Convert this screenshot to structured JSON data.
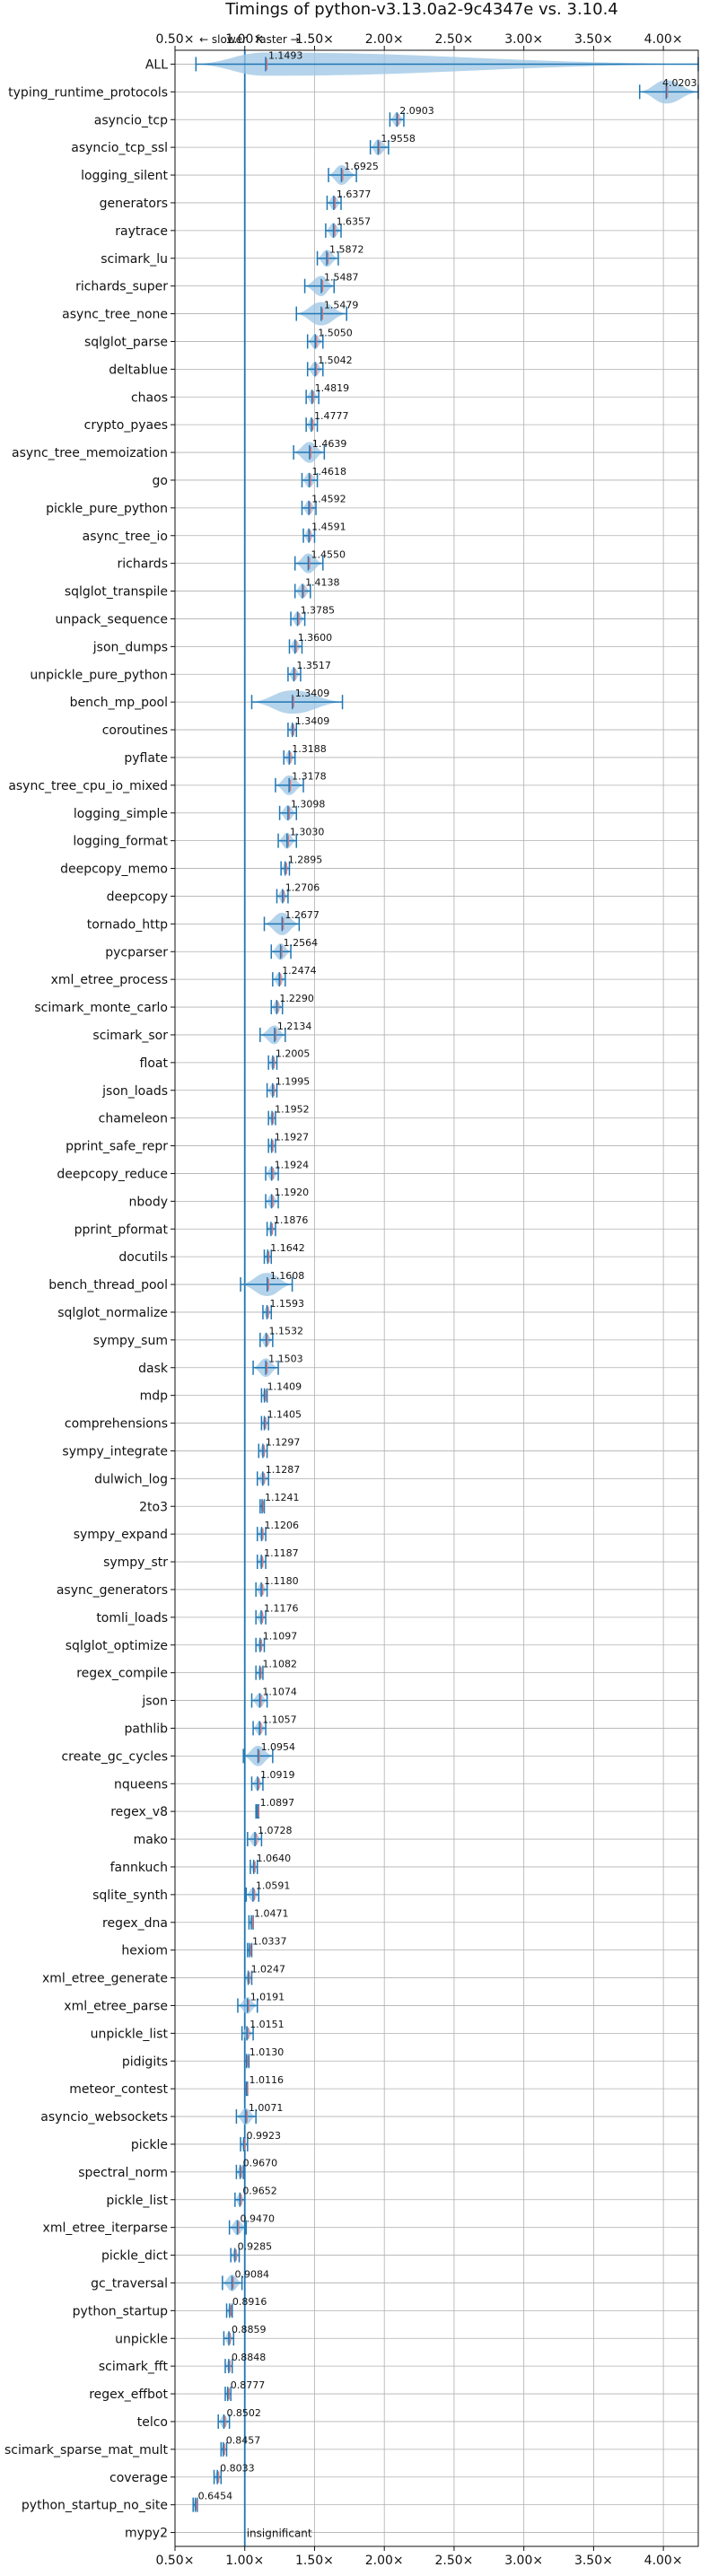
{
  "chart_data": {
    "type": "violin",
    "title": "Timings of python-v3.13.0a2-9c4347e vs. 3.10.4",
    "annotation_slower": "← slower",
    "annotation_faster": "faster →",
    "xlim": [
      0.5,
      4.25
    ],
    "x_ticks": [
      0.5,
      1.0,
      1.5,
      2.0,
      2.5,
      3.0,
      3.5,
      4.0
    ],
    "x_tick_labels": [
      "0.50×",
      "1.00×",
      "1.50×",
      "2.00×",
      "2.50×",
      "3.00×",
      "3.50×",
      "4.00×"
    ],
    "reference_line": 1.0,
    "grid": true,
    "colors": {
      "violin": "#9cc6e4",
      "median": "#1f77b4",
      "mean": "#e36f6f",
      "reference": "#1f77b4",
      "grid": "#b0b0b0"
    },
    "benchmarks": [
      {
        "name": "ALL",
        "value": 1.1493,
        "value_label": "1.1493",
        "lo": 0.65,
        "hi": 4.25
      },
      {
        "name": "typing_runtime_protocols",
        "value": 4.0203,
        "value_label": "4.0203",
        "lo": 3.83,
        "hi": 4.25
      },
      {
        "name": "asyncio_tcp",
        "value": 2.0903,
        "value_label": "2.0903",
        "lo": 2.04,
        "hi": 2.14
      },
      {
        "name": "asyncio_tcp_ssl",
        "value": 1.9558,
        "value_label": "1.9558",
        "lo": 1.9,
        "hi": 2.03
      },
      {
        "name": "logging_silent",
        "value": 1.6925,
        "value_label": "1.6925",
        "lo": 1.6,
        "hi": 1.8
      },
      {
        "name": "generators",
        "value": 1.6377,
        "value_label": "1.6377",
        "lo": 1.59,
        "hi": 1.69
      },
      {
        "name": "raytrace",
        "value": 1.6357,
        "value_label": "1.6357",
        "lo": 1.58,
        "hi": 1.69
      },
      {
        "name": "scimark_lu",
        "value": 1.5872,
        "value_label": "1.5872",
        "lo": 1.52,
        "hi": 1.67
      },
      {
        "name": "richards_super",
        "value": 1.5487,
        "value_label": "1.5487",
        "lo": 1.43,
        "hi": 1.64
      },
      {
        "name": "async_tree_none",
        "value": 1.5479,
        "value_label": "1.5479",
        "lo": 1.37,
        "hi": 1.73
      },
      {
        "name": "sqlglot_parse",
        "value": 1.505,
        "value_label": "1.5050",
        "lo": 1.45,
        "hi": 1.56
      },
      {
        "name": "deltablue",
        "value": 1.5042,
        "value_label": "1.5042",
        "lo": 1.45,
        "hi": 1.56
      },
      {
        "name": "chaos",
        "value": 1.4819,
        "value_label": "1.4819",
        "lo": 1.44,
        "hi": 1.53
      },
      {
        "name": "crypto_pyaes",
        "value": 1.4777,
        "value_label": "1.4777",
        "lo": 1.44,
        "hi": 1.52
      },
      {
        "name": "async_tree_memoization",
        "value": 1.4639,
        "value_label": "1.4639",
        "lo": 1.35,
        "hi": 1.57
      },
      {
        "name": "go",
        "value": 1.4618,
        "value_label": "1.4618",
        "lo": 1.41,
        "hi": 1.52
      },
      {
        "name": "pickle_pure_python",
        "value": 1.4592,
        "value_label": "1.4592",
        "lo": 1.41,
        "hi": 1.51
      },
      {
        "name": "async_tree_io",
        "value": 1.4591,
        "value_label": "1.4591",
        "lo": 1.42,
        "hi": 1.5
      },
      {
        "name": "richards",
        "value": 1.455,
        "value_label": "1.4550",
        "lo": 1.36,
        "hi": 1.56
      },
      {
        "name": "sqlglot_transpile",
        "value": 1.4138,
        "value_label": "1.4138",
        "lo": 1.36,
        "hi": 1.47
      },
      {
        "name": "unpack_sequence",
        "value": 1.3785,
        "value_label": "1.3785",
        "lo": 1.33,
        "hi": 1.43
      },
      {
        "name": "json_dumps",
        "value": 1.36,
        "value_label": "1.3600",
        "lo": 1.32,
        "hi": 1.41
      },
      {
        "name": "unpickle_pure_python",
        "value": 1.3517,
        "value_label": "1.3517",
        "lo": 1.31,
        "hi": 1.4
      },
      {
        "name": "bench_mp_pool",
        "value": 1.3409,
        "value_label": "1.3409",
        "lo": 1.05,
        "hi": 1.7
      },
      {
        "name": "coroutines",
        "value": 1.3409,
        "value_label": "1.3409",
        "lo": 1.31,
        "hi": 1.37
      },
      {
        "name": "pyflate",
        "value": 1.3188,
        "value_label": "1.3188",
        "lo": 1.28,
        "hi": 1.36
      },
      {
        "name": "async_tree_cpu_io_mixed",
        "value": 1.3178,
        "value_label": "1.3178",
        "lo": 1.22,
        "hi": 1.42
      },
      {
        "name": "logging_simple",
        "value": 1.3098,
        "value_label": "1.3098",
        "lo": 1.25,
        "hi": 1.37
      },
      {
        "name": "logging_format",
        "value": 1.303,
        "value_label": "1.3030",
        "lo": 1.24,
        "hi": 1.37
      },
      {
        "name": "deepcopy_memo",
        "value": 1.2895,
        "value_label": "1.2895",
        "lo": 1.26,
        "hi": 1.32
      },
      {
        "name": "deepcopy",
        "value": 1.2706,
        "value_label": "1.2706",
        "lo": 1.23,
        "hi": 1.31
      },
      {
        "name": "tornado_http",
        "value": 1.2677,
        "value_label": "1.2677",
        "lo": 1.14,
        "hi": 1.39
      },
      {
        "name": "pycparser",
        "value": 1.2564,
        "value_label": "1.2564",
        "lo": 1.19,
        "hi": 1.33
      },
      {
        "name": "xml_etree_process",
        "value": 1.2474,
        "value_label": "1.2474",
        "lo": 1.2,
        "hi": 1.29
      },
      {
        "name": "scimark_monte_carlo",
        "value": 1.229,
        "value_label": "1.2290",
        "lo": 1.19,
        "hi": 1.27
      },
      {
        "name": "scimark_sor",
        "value": 1.2134,
        "value_label": "1.2134",
        "lo": 1.11,
        "hi": 1.29
      },
      {
        "name": "float",
        "value": 1.2005,
        "value_label": "1.2005",
        "lo": 1.17,
        "hi": 1.23
      },
      {
        "name": "json_loads",
        "value": 1.1995,
        "value_label": "1.1995",
        "lo": 1.16,
        "hi": 1.23
      },
      {
        "name": "chameleon",
        "value": 1.1952,
        "value_label": "1.1952",
        "lo": 1.17,
        "hi": 1.22
      },
      {
        "name": "pprint_safe_repr",
        "value": 1.1927,
        "value_label": "1.1927",
        "lo": 1.17,
        "hi": 1.22
      },
      {
        "name": "deepcopy_reduce",
        "value": 1.1924,
        "value_label": "1.1924",
        "lo": 1.15,
        "hi": 1.24
      },
      {
        "name": "nbody",
        "value": 1.192,
        "value_label": "1.1920",
        "lo": 1.15,
        "hi": 1.24
      },
      {
        "name": "pprint_pformat",
        "value": 1.1876,
        "value_label": "1.1876",
        "lo": 1.16,
        "hi": 1.22
      },
      {
        "name": "docutils",
        "value": 1.1642,
        "value_label": "1.1642",
        "lo": 1.14,
        "hi": 1.19
      },
      {
        "name": "bench_thread_pool",
        "value": 1.1608,
        "value_label": "1.1608",
        "lo": 0.97,
        "hi": 1.34
      },
      {
        "name": "sqlglot_normalize",
        "value": 1.1593,
        "value_label": "1.1593",
        "lo": 1.13,
        "hi": 1.19
      },
      {
        "name": "sympy_sum",
        "value": 1.1532,
        "value_label": "1.1532",
        "lo": 1.11,
        "hi": 1.2
      },
      {
        "name": "dask",
        "value": 1.1503,
        "value_label": "1.1503",
        "lo": 1.06,
        "hi": 1.24
      },
      {
        "name": "mdp",
        "value": 1.1409,
        "value_label": "1.1409",
        "lo": 1.12,
        "hi": 1.16
      },
      {
        "name": "comprehensions",
        "value": 1.1405,
        "value_label": "1.1405",
        "lo": 1.12,
        "hi": 1.17
      },
      {
        "name": "sympy_integrate",
        "value": 1.1297,
        "value_label": "1.1297",
        "lo": 1.1,
        "hi": 1.16
      },
      {
        "name": "dulwich_log",
        "value": 1.1287,
        "value_label": "1.1287",
        "lo": 1.09,
        "hi": 1.17
      },
      {
        "name": "2to3",
        "value": 1.1241,
        "value_label": "1.1241",
        "lo": 1.11,
        "hi": 1.14
      },
      {
        "name": "sympy_expand",
        "value": 1.1206,
        "value_label": "1.1206",
        "lo": 1.09,
        "hi": 1.15
      },
      {
        "name": "sympy_str",
        "value": 1.1187,
        "value_label": "1.1187",
        "lo": 1.09,
        "hi": 1.15
      },
      {
        "name": "async_generators",
        "value": 1.118,
        "value_label": "1.1180",
        "lo": 1.08,
        "hi": 1.16
      },
      {
        "name": "tomli_loads",
        "value": 1.1176,
        "value_label": "1.1176",
        "lo": 1.08,
        "hi": 1.15
      },
      {
        "name": "sqlglot_optimize",
        "value": 1.1097,
        "value_label": "1.1097",
        "lo": 1.08,
        "hi": 1.14
      },
      {
        "name": "regex_compile",
        "value": 1.1082,
        "value_label": "1.1082",
        "lo": 1.08,
        "hi": 1.13
      },
      {
        "name": "json",
        "value": 1.1074,
        "value_label": "1.1074",
        "lo": 1.05,
        "hi": 1.16
      },
      {
        "name": "pathlib",
        "value": 1.1057,
        "value_label": "1.1057",
        "lo": 1.06,
        "hi": 1.15
      },
      {
        "name": "create_gc_cycles",
        "value": 1.0954,
        "value_label": "1.0954",
        "lo": 0.99,
        "hi": 1.2
      },
      {
        "name": "nqueens",
        "value": 1.0919,
        "value_label": "1.0919",
        "lo": 1.05,
        "hi": 1.13
      },
      {
        "name": "regex_v8",
        "value": 1.0897,
        "value_label": "1.0897",
        "lo": 1.08,
        "hi": 1.1
      },
      {
        "name": "mako",
        "value": 1.0728,
        "value_label": "1.0728",
        "lo": 1.02,
        "hi": 1.12
      },
      {
        "name": "fannkuch",
        "value": 1.064,
        "value_label": "1.0640",
        "lo": 1.04,
        "hi": 1.09
      },
      {
        "name": "sqlite_synth",
        "value": 1.0591,
        "value_label": "1.0591",
        "lo": 1.01,
        "hi": 1.1
      },
      {
        "name": "regex_dna",
        "value": 1.0471,
        "value_label": "1.0471",
        "lo": 1.03,
        "hi": 1.06
      },
      {
        "name": "hexiom",
        "value": 1.0337,
        "value_label": "1.0337",
        "lo": 1.02,
        "hi": 1.05
      },
      {
        "name": "xml_etree_generate",
        "value": 1.0247,
        "value_label": "1.0247",
        "lo": 1.0,
        "hi": 1.05
      },
      {
        "name": "xml_etree_parse",
        "value": 1.0191,
        "value_label": "1.0191",
        "lo": 0.95,
        "hi": 1.09
      },
      {
        "name": "unpickle_list",
        "value": 1.0151,
        "value_label": "1.0151",
        "lo": 0.98,
        "hi": 1.06
      },
      {
        "name": "pidigits",
        "value": 1.013,
        "value_label": "1.0130",
        "lo": 1.0,
        "hi": 1.03
      },
      {
        "name": "meteor_contest",
        "value": 1.0116,
        "value_label": "1.0116",
        "lo": 1.0,
        "hi": 1.02
      },
      {
        "name": "asyncio_websockets",
        "value": 1.0071,
        "value_label": "1.0071",
        "lo": 0.94,
        "hi": 1.08
      },
      {
        "name": "pickle",
        "value": 0.9923,
        "value_label": "0.9923",
        "lo": 0.97,
        "hi": 1.02
      },
      {
        "name": "spectral_norm",
        "value": 0.967,
        "value_label": "0.9670",
        "lo": 0.94,
        "hi": 0.99
      },
      {
        "name": "pickle_list",
        "value": 0.9652,
        "value_label": "0.9652",
        "lo": 0.93,
        "hi": 1.0
      },
      {
        "name": "xml_etree_iterparse",
        "value": 0.947,
        "value_label": "0.9470",
        "lo": 0.89,
        "hi": 1.01
      },
      {
        "name": "pickle_dict",
        "value": 0.9285,
        "value_label": "0.9285",
        "lo": 0.9,
        "hi": 0.96
      },
      {
        "name": "gc_traversal",
        "value": 0.9084,
        "value_label": "0.9084",
        "lo": 0.84,
        "hi": 0.98
      },
      {
        "name": "python_startup",
        "value": 0.8916,
        "value_label": "0.8916",
        "lo": 0.87,
        "hi": 0.91
      },
      {
        "name": "unpickle",
        "value": 0.8859,
        "value_label": "0.8859",
        "lo": 0.85,
        "hi": 0.92
      },
      {
        "name": "scimark_fft",
        "value": 0.8848,
        "value_label": "0.8848",
        "lo": 0.86,
        "hi": 0.91
      },
      {
        "name": "regex_effbot",
        "value": 0.8777,
        "value_label": "0.8777",
        "lo": 0.86,
        "hi": 0.9
      },
      {
        "name": "telco",
        "value": 0.8502,
        "value_label": "0.8502",
        "lo": 0.81,
        "hi": 0.89
      },
      {
        "name": "scimark_sparse_mat_mult",
        "value": 0.8457,
        "value_label": "0.8457",
        "lo": 0.83,
        "hi": 0.87
      },
      {
        "name": "coverage",
        "value": 0.8033,
        "value_label": "0.8033",
        "lo": 0.78,
        "hi": 0.83
      },
      {
        "name": "python_startup_no_site",
        "value": 0.6454,
        "value_label": "0.6454",
        "lo": 0.63,
        "hi": 0.66
      },
      {
        "name": "mypy2",
        "value": null,
        "value_label": "insignificant",
        "lo": null,
        "hi": null
      }
    ]
  }
}
